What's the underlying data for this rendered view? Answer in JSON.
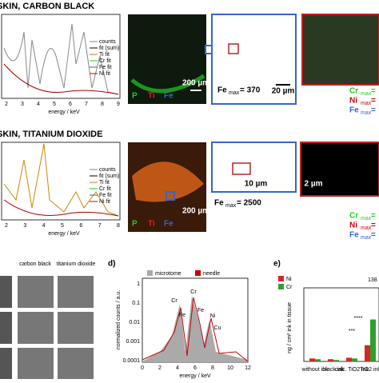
{
  "panel_a": {
    "title": "SKIN, CARBON BLACK",
    "legend": [
      "counts",
      "fit (sum)",
      "Ti fit",
      "Cr fit",
      "Fe fit",
      "Ni fit"
    ],
    "xticks": [
      "2",
      "3",
      "4",
      "5",
      "6",
      "7",
      "8",
      "9"
    ],
    "xlabel": "energy / keV",
    "channels": [
      "P",
      "Ti",
      "Fe"
    ],
    "scale_map": "200 µm",
    "zoom_label": {
      "element": "Fe",
      "sub": "max",
      "text": "= 370"
    },
    "scale_zoom": "20 µm",
    "maxima": [
      {
        "element": "Cr",
        "sub": "max",
        "text": "="
      },
      {
        "element": "Ni",
        "sub": "max",
        "text": "="
      },
      {
        "element": "Fe",
        "sub": "max",
        "text": "="
      }
    ]
  },
  "panel_b": {
    "title": "SKIN, TITANIUM DIOXIDE",
    "legend": [
      "counts",
      "fit (sum)",
      "Ti fit",
      "Cr fit",
      "Fe fit",
      "Ni fit"
    ],
    "xticks": [
      "2",
      "3",
      "4",
      "5",
      "6",
      "7",
      "8"
    ],
    "xlabel": "energy / keV",
    "channels": [
      "P",
      "Ti",
      "Fe"
    ],
    "scale_map": "200 µm",
    "zoom_label": {
      "element": "Fe",
      "sub": "max",
      "text": "= 2500"
    },
    "scale_zoom": "10 µm",
    "scale_detail": "2 µm",
    "maxima": [
      {
        "element": "Cr",
        "sub": "max",
        "text": "="
      },
      {
        "element": "Ni",
        "sub": "max",
        "text": "="
      },
      {
        "element": "Fe",
        "sub": "max",
        "text": "="
      }
    ]
  },
  "panel_c": {
    "columns": [
      "carbon black",
      "titanium dioxide"
    ]
  },
  "panel_d": {
    "label": "d)",
    "legend": [
      "microtome",
      "needle"
    ],
    "ylabel": "normalized counts / a.u.",
    "yticks": [
      "1",
      "0.1",
      "0.01",
      "0.001",
      "0.0001"
    ],
    "xticks": [
      "0",
      "2",
      "4",
      "6",
      "8",
      "10",
      "12"
    ],
    "xlabel": "energy / keV",
    "peaks": [
      "Cr",
      "Fe",
      "Cr",
      "Fe",
      "Ni",
      "Cu"
    ]
  },
  "panel_e": {
    "label": "e)",
    "annotation": "138",
    "ylabel": "ng / cm² ink in tissue",
    "significance": [
      "****",
      "***"
    ],
    "chart_data": {
      "type": "bar",
      "categories": [
        "without ink",
        "black ink",
        "calc. TiO2 ink",
        "TiO2 ink"
      ],
      "ylim": [
        0,
        100
      ],
      "series": [
        {
          "name": "Ni",
          "color": "#d62728",
          "values": [
            4,
            3,
            5,
            22
          ]
        },
        {
          "name": "Cr",
          "color": "#2ca02c",
          "values": [
            3,
            2,
            4,
            57
          ]
        }
      ]
    }
  }
}
